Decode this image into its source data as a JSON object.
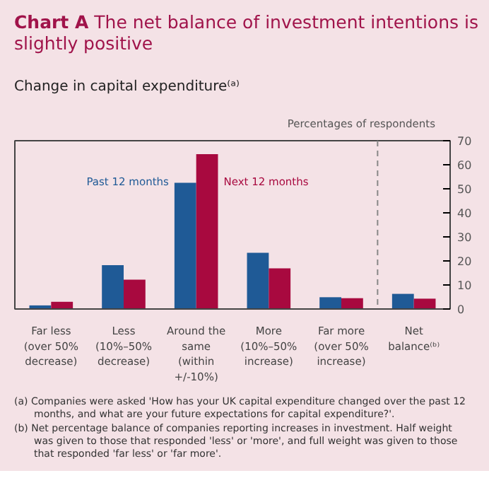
{
  "chart_data": {
    "type": "bar",
    "title": "Chart A The net balance of investment intentions is slightly positive",
    "subtitle": "Change in capital expenditure⁽ᵃ⁾",
    "ylabel": "Percentages of respondents",
    "categories": [
      "Far less (over 50% decrease)",
      "Less (10%–50% decrease)",
      "Around the same (within +/-10%)",
      "More (10%–50% increase)",
      "Far more (over 50% increase)",
      "Net balance⁽ᵇ⁾"
    ],
    "series": [
      {
        "name": "Past 12 months",
        "color": "#1f5a96",
        "values": [
          1.5,
          18.2,
          52.5,
          23.4,
          4.9,
          6.3
        ]
      },
      {
        "name": "Next 12 months",
        "color": "#a8093f",
        "values": [
          3.0,
          12.2,
          64.4,
          16.9,
          4.5,
          4.3
        ]
      }
    ],
    "ylim": [
      0,
      70
    ],
    "yticks": [
      0,
      10,
      20,
      30,
      40,
      50,
      60,
      70
    ],
    "grid": false,
    "legend": false,
    "annotations": [
      "(a) Companies were asked 'How has your UK capital expenditure changed over the past 12 months, and what are your future expectations for capital expenditure?'.",
      "(b) Net percentage balance of companies reporting increases in investment. Half weight was given to those that responded 'less' or 'more', and full weight was given to those that responded 'far less' or 'far more'."
    ]
  }
}
